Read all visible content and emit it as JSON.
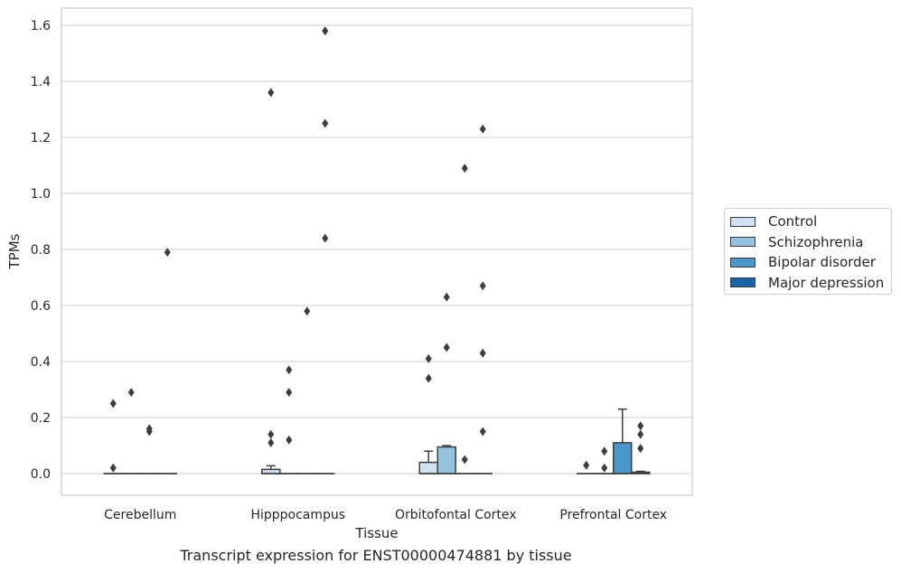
{
  "chart_data": {
    "type": "box",
    "ylabel": "TPMs",
    "xlabel": "Tissue",
    "caption": "Transcript expression for ENST00000474881 by tissue",
    "ylim": [
      -0.08,
      1.66
    ],
    "yticks": [
      "0.0",
      "0.2",
      "0.4",
      "0.6",
      "0.8",
      "1.0",
      "1.2",
      "1.4",
      "1.6"
    ],
    "grid": true,
    "legend_position": "right",
    "categories": [
      "Cerebellum",
      "Hipppocampus",
      "Orbitofontal Cortex",
      "Prefrontal Cortex"
    ],
    "series": [
      {
        "name": "Control",
        "color": "#d0e1f2",
        "boxes": [
          {
            "q1": 0,
            "median": 0,
            "q3": 0,
            "whisker_low": 0,
            "whisker_high": 0,
            "outliers": [
              0.25,
              0.02
            ]
          },
          {
            "q1": 0,
            "median": 0,
            "q3": 0.015,
            "whisker_low": 0,
            "whisker_high": 0.028,
            "outliers": [
              1.36,
              0.14,
              0.11
            ]
          },
          {
            "q1": 0,
            "median": 0,
            "q3": 0.04,
            "whisker_low": 0,
            "whisker_high": 0.08,
            "outliers": [
              0.41,
              0.34
            ]
          },
          {
            "q1": 0,
            "median": 0,
            "q3": 0,
            "whisker_low": 0,
            "whisker_high": 0,
            "outliers": [
              0.03
            ]
          }
        ]
      },
      {
        "name": "Schizophrenia",
        "color": "#94c4df",
        "boxes": [
          {
            "q1": 0,
            "median": 0,
            "q3": 0,
            "whisker_low": 0,
            "whisker_high": 0,
            "outliers": [
              0.29
            ]
          },
          {
            "q1": 0,
            "median": 0,
            "q3": 0,
            "whisker_low": 0,
            "whisker_high": 0,
            "outliers": [
              0.37,
              0.29,
              0.12
            ]
          },
          {
            "q1": 0,
            "median": 0,
            "q3": 0.095,
            "whisker_low": 0,
            "whisker_high": 0.1,
            "outliers": [
              0.63,
              0.45
            ]
          },
          {
            "q1": 0,
            "median": 0,
            "q3": 0,
            "whisker_low": 0,
            "whisker_high": 0,
            "outliers": [
              0.08,
              0.02
            ]
          }
        ]
      },
      {
        "name": "Bipolar disorder",
        "color": "#4a98c9",
        "boxes": [
          {
            "q1": 0,
            "median": 0,
            "q3": 0,
            "whisker_low": 0,
            "whisker_high": 0,
            "outliers": [
              0.16,
              0.15
            ]
          },
          {
            "q1": 0,
            "median": 0,
            "q3": 0,
            "whisker_low": 0,
            "whisker_high": 0,
            "outliers": [
              0.58
            ]
          },
          {
            "q1": 0,
            "median": 0,
            "q3": 0,
            "whisker_low": 0,
            "whisker_high": 0,
            "outliers": [
              1.09,
              0.05
            ]
          },
          {
            "q1": 0,
            "median": 0,
            "q3": 0.11,
            "whisker_low": 0,
            "whisker_high": 0.23,
            "outliers": []
          }
        ]
      },
      {
        "name": "Major depression",
        "color": "#1764ab",
        "boxes": [
          {
            "q1": 0,
            "median": 0,
            "q3": 0,
            "whisker_low": 0,
            "whisker_high": 0,
            "outliers": [
              0.79
            ]
          },
          {
            "q1": 0,
            "median": 0,
            "q3": 0,
            "whisker_low": 0,
            "whisker_high": 0,
            "outliers": [
              1.58,
              1.25,
              0.84
            ]
          },
          {
            "q1": 0,
            "median": 0,
            "q3": 0,
            "whisker_low": 0,
            "whisker_high": 0,
            "outliers": [
              1.23,
              0.67,
              0.43,
              0.15
            ]
          },
          {
            "q1": 0,
            "median": 0,
            "q3": 0.005,
            "whisker_low": 0,
            "whisker_high": 0.008,
            "outliers": [
              0.17,
              0.14,
              0.09
            ]
          }
        ]
      }
    ]
  }
}
